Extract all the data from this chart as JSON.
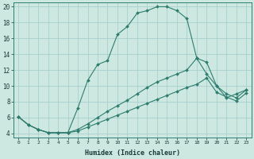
{
  "xlabel": "Humidex (Indice chaleur)",
  "bg_color": "#cce8e0",
  "line_color": "#2e7d6e",
  "grid_color": "#aacfcf",
  "xlim": [
    -0.5,
    23.5
  ],
  "ylim": [
    3.5,
    20.5
  ],
  "xticks": [
    0,
    1,
    2,
    3,
    4,
    5,
    6,
    7,
    8,
    9,
    10,
    11,
    12,
    13,
    14,
    15,
    16,
    17,
    18,
    19,
    20,
    21,
    22,
    23
  ],
  "yticks": [
    4,
    6,
    8,
    10,
    12,
    14,
    16,
    18,
    20
  ],
  "curve1_x": [
    0,
    1,
    2,
    3,
    4,
    5,
    6,
    7,
    8,
    9,
    10,
    11,
    12,
    13,
    14,
    15,
    16,
    17,
    18,
    19,
    20,
    21,
    22,
    23
  ],
  "curve1_y": [
    6.1,
    5.1,
    4.5,
    4.1,
    4.1,
    4.1,
    7.2,
    10.7,
    12.7,
    13.2,
    16.5,
    17.5,
    19.2,
    19.5,
    20.0,
    20.0,
    19.5,
    18.5,
    13.5,
    11.5,
    10.0,
    8.5,
    9.0,
    9.5
  ],
  "curve2_x": [
    0,
    1,
    2,
    3,
    4,
    5,
    6,
    7,
    8,
    9,
    10,
    11,
    12,
    13,
    14,
    15,
    16,
    17,
    18,
    19,
    20,
    21,
    22,
    23
  ],
  "curve2_y": [
    6.1,
    5.1,
    4.5,
    4.1,
    4.1,
    4.1,
    4.5,
    5.2,
    6.0,
    6.8,
    7.5,
    8.2,
    9.0,
    9.8,
    10.5,
    11.0,
    11.5,
    12.0,
    13.5,
    13.0,
    10.0,
    9.0,
    8.5,
    9.5
  ],
  "curve3_x": [
    0,
    1,
    2,
    3,
    4,
    5,
    6,
    7,
    8,
    9,
    10,
    11,
    12,
    13,
    14,
    15,
    16,
    17,
    18,
    19,
    20,
    21,
    22,
    23
  ],
  "curve3_y": [
    6.1,
    5.1,
    4.5,
    4.1,
    4.1,
    4.1,
    4.3,
    4.8,
    5.3,
    5.8,
    6.3,
    6.8,
    7.3,
    7.8,
    8.3,
    8.8,
    9.3,
    9.8,
    10.2,
    11.0,
    9.2,
    8.6,
    8.1,
    9.1
  ]
}
